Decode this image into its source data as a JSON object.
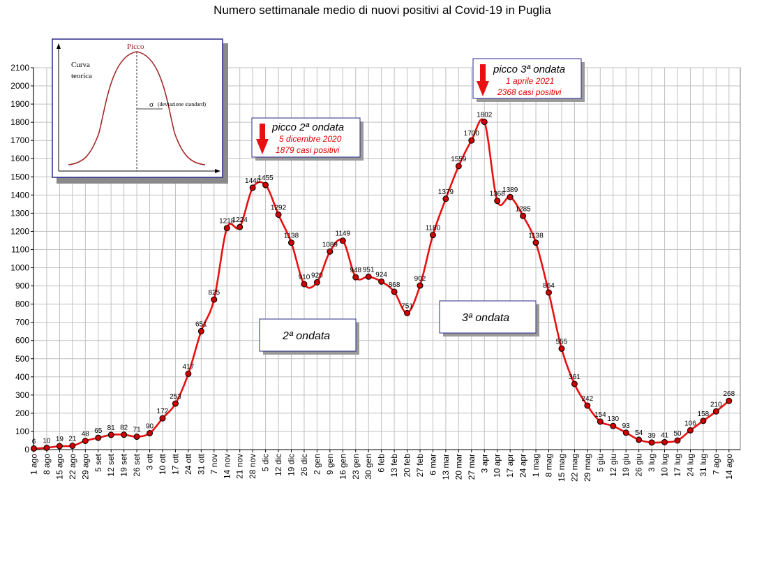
{
  "chart_data": {
    "type": "line",
    "title": "Numero settimanale medio di nuovi positivi al Covid-19 in Puglia",
    "xlabel": "",
    "ylabel": "",
    "ylim": [
      0,
      2100
    ],
    "ytick_step": 100,
    "grid": true,
    "categories": [
      "1 ago",
      "8 ago",
      "15 ago",
      "22 ago",
      "29 ago",
      "5 set",
      "12 set",
      "19 set",
      "26 set",
      "3 ott",
      "10 ott",
      "17 ott",
      "24 ott",
      "31 ott",
      "7 nov",
      "14 nov",
      "21 nov",
      "28 nov",
      "5 dic",
      "12 dic",
      "19 dic",
      "26 dic",
      "2 gen",
      "9 gen",
      "16 gen",
      "23 gen",
      "30 gen",
      "6 feb",
      "13 feb",
      "20 feb",
      "27 feb",
      "6 mar",
      "13 mar",
      "20 mar",
      "27 mar",
      "3 apr",
      "10 apr",
      "17 apr",
      "24 apr",
      "1 mag",
      "8 mag",
      "15 mag",
      "22 mag",
      "29 mag",
      "5 giu",
      "12 giu",
      "19 giu",
      "26 giu",
      "3 lug",
      "10 lug",
      "17 lug",
      "24 lug",
      "31 lug",
      "7 ago",
      "14 ago"
    ],
    "values": [
      6,
      10,
      19,
      21,
      48,
      65,
      81,
      82,
      71,
      90,
      172,
      253,
      417,
      651,
      825,
      1218,
      1224,
      1440,
      1455,
      1292,
      1138,
      910,
      920,
      1089,
      1149,
      948,
      951,
      924,
      868,
      751,
      902,
      1180,
      1379,
      1559,
      1700,
      1802,
      1368,
      1389,
      1285,
      1138,
      864,
      555,
      361,
      242,
      154,
      130,
      93,
      54,
      39,
      41,
      50,
      106,
      158,
      210,
      268
    ],
    "series_color": "#e81010",
    "marker_color": "#cc0000",
    "annotations": {
      "peak2": {
        "title": "picco 2ª ondata",
        "date": "5 dicembre 2020",
        "cases": "1879 casi positivi"
      },
      "peak3": {
        "title": "picco 3ª ondata",
        "date": "1 aprile 2021",
        "cases": "2368 casi positivi"
      },
      "wave2": "2ª ondata",
      "wave3": "3ª ondata"
    },
    "inset": {
      "peak_label": "Picco",
      "curve_label_1": "Curva",
      "curve_label_2": "teorica",
      "sigma_label": "σ",
      "sigma_desc": "(deviazione standard)"
    }
  }
}
